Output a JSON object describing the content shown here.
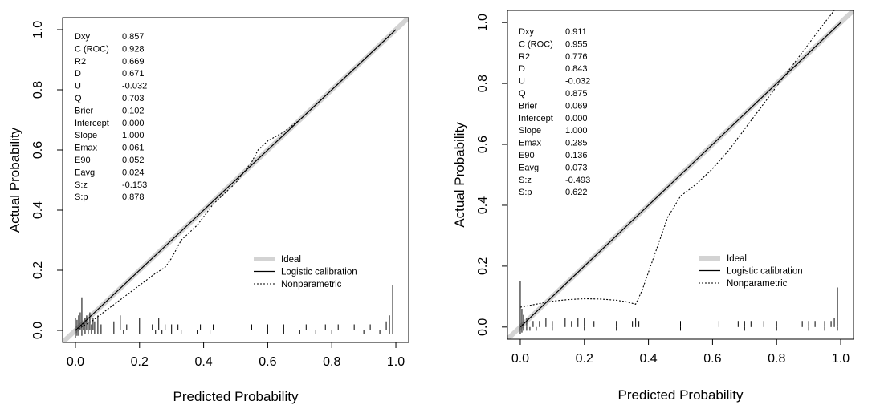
{
  "chart_data": [
    {
      "type": "line",
      "title": "",
      "xlabel": "Predicted Probability",
      "ylabel": "Actual Probability",
      "xlim": [
        -0.04,
        1.04
      ],
      "ylim": [
        -0.04,
        1.04
      ],
      "x_ticks": [
        "0.0",
        "0.2",
        "0.4",
        "0.6",
        "0.8",
        "1.0"
      ],
      "y_ticks": [
        "0.0",
        "0.2",
        "0.4",
        "0.6",
        "0.8",
        "1.0"
      ],
      "stats": [
        {
          "name": "Dxy",
          "value": "0.857"
        },
        {
          "name": "C (ROC)",
          "value": "0.928"
        },
        {
          "name": "R2",
          "value": "0.669"
        },
        {
          "name": "D",
          "value": "0.671"
        },
        {
          "name": "U",
          "value": "-0.032"
        },
        {
          "name": "Q",
          "value": "0.703"
        },
        {
          "name": "Brier",
          "value": "0.102"
        },
        {
          "name": "Intercept",
          "value": "0.000"
        },
        {
          "name": "Slope",
          "value": "1.000"
        },
        {
          "name": "Emax",
          "value": "0.061"
        },
        {
          "name": "E90",
          "value": "0.052"
        },
        {
          "name": "Eavg",
          "value": "0.024"
        },
        {
          "name": "S:z",
          "value": "-0.153"
        },
        {
          "name": "S:p",
          "value": "0.878"
        }
      ],
      "legend": [
        "Ideal",
        "Logistic calibration",
        "Nonparametric"
      ],
      "legend_position": "bottom-right",
      "series": [
        {
          "name": "Ideal",
          "x": [
            -0.04,
            1.04
          ],
          "y": [
            -0.04,
            1.04
          ]
        },
        {
          "name": "Logistic calibration",
          "x": [
            0.0,
            1.0
          ],
          "y": [
            0.0,
            1.0
          ]
        },
        {
          "name": "Nonparametric",
          "x": [
            0.0,
            0.05,
            0.1,
            0.15,
            0.2,
            0.25,
            0.28,
            0.3,
            0.33,
            0.38,
            0.43,
            0.5,
            0.55,
            0.57,
            0.6,
            0.65,
            0.7,
            0.8,
            0.9,
            0.95,
            1.0
          ],
          "y": [
            0.0,
            0.03,
            0.07,
            0.11,
            0.15,
            0.19,
            0.21,
            0.24,
            0.3,
            0.35,
            0.42,
            0.49,
            0.56,
            0.6,
            0.63,
            0.66,
            0.7,
            0.8,
            0.9,
            0.95,
            1.0
          ]
        }
      ],
      "rug_top": [
        0.0,
        0.005,
        0.01,
        0.015,
        0.02,
        0.025,
        0.03,
        0.035,
        0.04,
        0.045,
        0.05,
        0.055,
        0.06,
        0.07,
        0.08,
        0.12,
        0.14,
        0.16,
        0.2,
        0.24,
        0.26,
        0.28,
        0.3,
        0.32,
        0.39,
        0.43,
        0.55,
        0.6,
        0.65,
        0.72,
        0.78,
        0.82,
        0.87,
        0.92,
        0.97,
        0.98,
        0.99
      ],
      "rug_top_heights": [
        0.04,
        0.035,
        0.05,
        0.06,
        0.11,
        0.03,
        0.04,
        0.05,
        0.03,
        0.06,
        0.02,
        0.04,
        0.03,
        0.05,
        0.02,
        0.03,
        0.05,
        0.02,
        0.04,
        0.02,
        0.04,
        0.02,
        0.02,
        0.02,
        0.02,
        0.02,
        0.02,
        0.02,
        0.02,
        0.02,
        0.02,
        0.02,
        0.02,
        0.02,
        0.03,
        0.05,
        0.15
      ],
      "rug_bottom": [
        0.0,
        0.005,
        0.01,
        0.02,
        0.03,
        0.04,
        0.05,
        0.06,
        0.07,
        0.08,
        0.12,
        0.15,
        0.2,
        0.25,
        0.27,
        0.3,
        0.33,
        0.38,
        0.42,
        0.6,
        0.65,
        0.7,
        0.75,
        0.8,
        0.9,
        0.95,
        0.98,
        0.99
      ],
      "rug_bottom_heights": [
        0.04,
        0.03,
        0.03,
        0.03,
        0.02,
        0.02,
        0.02,
        0.02,
        0.02,
        0.02,
        0.02,
        0.02,
        0.02,
        0.02,
        0.02,
        0.02,
        0.02,
        0.02,
        0.02,
        0.02,
        0.02,
        0.02,
        0.02,
        0.02,
        0.02,
        0.02,
        0.02,
        0.02
      ]
    },
    {
      "type": "line",
      "title": "",
      "xlabel": "Predicted Probability",
      "ylabel": "Actual Probability",
      "xlim": [
        -0.04,
        1.04
      ],
      "ylim": [
        -0.04,
        1.04
      ],
      "x_ticks": [
        "0.0",
        "0.2",
        "0.4",
        "0.6",
        "0.8",
        "1.0"
      ],
      "y_ticks": [
        "0.0",
        "0.2",
        "0.4",
        "0.6",
        "0.8",
        "1.0"
      ],
      "stats": [
        {
          "name": "Dxy",
          "value": "0.911"
        },
        {
          "name": "C (ROC)",
          "value": "0.955"
        },
        {
          "name": "R2",
          "value": "0.776"
        },
        {
          "name": "D",
          "value": "0.843"
        },
        {
          "name": "U",
          "value": "-0.032"
        },
        {
          "name": "Q",
          "value": "0.875"
        },
        {
          "name": "Brier",
          "value": "0.069"
        },
        {
          "name": "Intercept",
          "value": "0.000"
        },
        {
          "name": "Slope",
          "value": "1.000"
        },
        {
          "name": "Emax",
          "value": "0.285"
        },
        {
          "name": "E90",
          "value": "0.136"
        },
        {
          "name": "Eavg",
          "value": "0.073"
        },
        {
          "name": "S:z",
          "value": "-0.493"
        },
        {
          "name": "S:p",
          "value": "0.622"
        }
      ],
      "legend": [
        "Ideal",
        "Logistic calibration",
        "Nonparametric"
      ],
      "legend_position": "bottom-right",
      "series": [
        {
          "name": "Ideal",
          "x": [
            -0.04,
            1.04
          ],
          "y": [
            -0.04,
            1.04
          ]
        },
        {
          "name": "Logistic calibration",
          "x": [
            0.0,
            1.0
          ],
          "y": [
            0.0,
            1.0
          ]
        },
        {
          "name": "Nonparametric",
          "x": [
            0.0,
            0.05,
            0.1,
            0.15,
            0.2,
            0.25,
            0.3,
            0.33,
            0.36,
            0.38,
            0.42,
            0.46,
            0.5,
            0.55,
            0.6,
            0.65,
            0.7,
            0.75,
            0.8,
            0.85,
            0.9,
            0.95,
            0.98
          ],
          "y": [
            0.065,
            0.075,
            0.085,
            0.09,
            0.093,
            0.092,
            0.088,
            0.083,
            0.075,
            0.12,
            0.24,
            0.36,
            0.43,
            0.47,
            0.52,
            0.58,
            0.65,
            0.72,
            0.79,
            0.86,
            0.93,
            1.0,
            1.04
          ]
        }
      ],
      "rug_top": [
        0.0,
        0.005,
        0.01,
        0.02,
        0.04,
        0.06,
        0.08,
        0.1,
        0.14,
        0.16,
        0.18,
        0.2,
        0.23,
        0.3,
        0.35,
        0.36,
        0.37,
        0.5,
        0.62,
        0.68,
        0.7,
        0.72,
        0.76,
        0.8,
        0.88,
        0.9,
        0.92,
        0.95,
        0.97,
        0.98,
        0.99
      ],
      "rug_top_heights": [
        0.15,
        0.06,
        0.04,
        0.03,
        0.02,
        0.02,
        0.03,
        0.02,
        0.03,
        0.02,
        0.03,
        0.03,
        0.02,
        0.02,
        0.02,
        0.03,
        0.02,
        0.02,
        0.02,
        0.02,
        0.02,
        0.02,
        0.02,
        0.02,
        0.02,
        0.02,
        0.02,
        0.02,
        0.02,
        0.03,
        0.13
      ],
      "rug_bottom": [
        0.0,
        0.005,
        0.01,
        0.02,
        0.03,
        0.05,
        0.1,
        0.2,
        0.3,
        0.5,
        0.7,
        0.8,
        0.9,
        0.95,
        0.99
      ],
      "rug_bottom_heights": [
        0.04,
        0.03,
        0.02,
        0.02,
        0.02,
        0.02,
        0.02,
        0.02,
        0.02,
        0.02,
        0.02,
        0.02,
        0.02,
        0.02,
        0.02
      ]
    }
  ]
}
